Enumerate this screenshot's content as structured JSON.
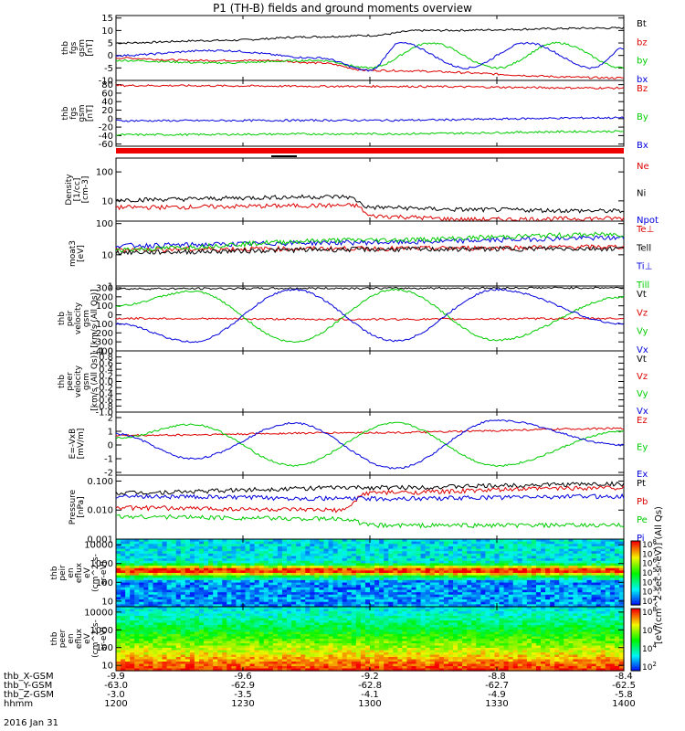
{
  "title": "P1 (TH-B) fields and ground moments overview",
  "xticks": [
    "1200",
    "1230",
    "1300",
    "1330",
    "1400"
  ],
  "footer_rows": [
    {
      "label": "thb_X-GSM",
      "values": [
        "-9.9",
        "-9.6",
        "-9.2",
        "-8.8",
        "-8.4"
      ]
    },
    {
      "label": "thb_Y-GSM",
      "values": [
        "-63.0",
        "-62.9",
        "-62.8",
        "-62.7",
        "-62.5"
      ]
    },
    {
      "label": "thb_Z-GSM",
      "values": [
        "-3.0",
        "-3.5",
        "-4.1",
        "-4.9",
        "-5.8"
      ]
    },
    {
      "label": "hhmm",
      "values": [
        "1200",
        "1230",
        "1300",
        "1330",
        "1400"
      ]
    }
  ],
  "date_label": "2016 Jan 31",
  "colorbar_label": "[eV/(cm^2-sec-sr-eV)] (All Qs)",
  "colors": {
    "black": "#000000",
    "red": "#dd0000",
    "green": "#00cc00",
    "blue": "#0000dd"
  },
  "chart_data": [
    {
      "type": "line",
      "ylabel": [
        "thb",
        "fgs",
        "gsm",
        "[nT]"
      ],
      "ylim": [
        -10,
        16
      ],
      "log": false,
      "yticks": [
        {
          "v": 15,
          "t": "15"
        },
        {
          "v": 10,
          "t": "10"
        },
        {
          "v": 5,
          "t": "5"
        },
        {
          "v": 0,
          "t": "0"
        },
        {
          "v": -5,
          "t": "-5"
        },
        {
          "v": -10,
          "t": "-10"
        }
      ],
      "series": [
        {
          "name": "Bt",
          "color": "black",
          "points": [
            [
              0,
              5
            ],
            [
              0.2,
              6
            ],
            [
              0.4,
              7.5
            ],
            [
              0.5,
              8
            ],
            [
              0.6,
              10
            ],
            [
              1,
              11
            ]
          ]
        },
        {
          "name": "bz",
          "color": "red",
          "points": [
            [
              0,
              -1
            ],
            [
              0.15,
              -2
            ],
            [
              0.3,
              -2
            ],
            [
              0.4,
              -3
            ],
            [
              0.5,
              -6
            ],
            [
              1,
              -9
            ]
          ]
        },
        {
          "name": "by",
          "color": "green",
          "points": [
            [
              0,
              -2
            ],
            [
              0.2,
              -3
            ],
            [
              0.4,
              -2
            ],
            [
              0.5,
              -5
            ],
            [
              0.62,
              5
            ],
            [
              0.75,
              -5
            ],
            [
              0.87,
              5
            ],
            [
              1,
              -5
            ]
          ]
        },
        {
          "name": "bx",
          "color": "blue",
          "points": [
            [
              0,
              0
            ],
            [
              0.2,
              2
            ],
            [
              0.4,
              -1
            ],
            [
              0.5,
              -6
            ],
            [
              0.56,
              5
            ],
            [
              0.69,
              -5
            ],
            [
              0.81,
              5
            ],
            [
              0.94,
              -5
            ],
            [
              1,
              3
            ]
          ]
        }
      ]
    },
    {
      "type": "line",
      "ylabel": [
        "thb",
        "fgs",
        "gsm",
        "[nT]"
      ],
      "ylim": [
        -65,
        90
      ],
      "log": false,
      "yticks": [
        {
          "v": 80,
          "t": "80"
        },
        {
          "v": 60,
          "t": "60"
        },
        {
          "v": 40,
          "t": "40"
        },
        {
          "v": 20,
          "t": "20"
        },
        {
          "v": 0,
          "t": "0"
        },
        {
          "v": -20,
          "t": "-20"
        },
        {
          "v": -40,
          "t": "-40"
        },
        {
          "v": -60,
          "t": "-60"
        }
      ],
      "series": [
        {
          "name": "Bz",
          "color": "red",
          "points": [
            [
              0,
              78
            ],
            [
              0.5,
              76
            ],
            [
              1,
              72
            ]
          ]
        },
        {
          "name": "By",
          "color": "green",
          "points": [
            [
              0,
              -38
            ],
            [
              0.5,
              -36
            ],
            [
              1,
              -30
            ]
          ]
        },
        {
          "name": "Bx",
          "color": "blue",
          "points": [
            [
              0,
              -5
            ],
            [
              0.5,
              -4
            ],
            [
              1,
              2
            ]
          ]
        }
      ]
    },
    {
      "type": "line",
      "ylabel": [
        "Density",
        "[1/cc]",
        "[cm-3]"
      ],
      "ylim": [
        2,
        300
      ],
      "log": true,
      "yticks": [
        {
          "v": 100,
          "t": "100"
        },
        {
          "v": 10,
          "t": "10"
        }
      ],
      "series": [
        {
          "name": "Ne",
          "color": "red",
          "points": [
            [
              0,
              6
            ],
            [
              0.47,
              7
            ],
            [
              0.5,
              3
            ],
            [
              0.7,
              2.3
            ],
            [
              1,
              2.5
            ]
          ]
        },
        {
          "name": "Ni",
          "color": "black",
          "points": [
            [
              0,
              11
            ],
            [
              0.45,
              14
            ],
            [
              0.5,
              6
            ],
            [
              0.7,
              5
            ],
            [
              1,
              4.5
            ]
          ]
        },
        {
          "name": "Npot",
          "color": "blue",
          "points": []
        }
      ]
    },
    {
      "type": "line",
      "ylabel": [
        "moat3",
        "[eV]"
      ],
      "ylim": [
        1,
        120
      ],
      "log": true,
      "yticks": [
        {
          "v": 100,
          "t": "100"
        },
        {
          "v": 10,
          "t": "10"
        },
        {
          "v": 1,
          "t": "1"
        }
      ],
      "series": [
        {
          "name": "Te⊥",
          "color": "red",
          "points": [
            [
              0,
              15
            ],
            [
              0.5,
              16
            ],
            [
              1,
              18
            ]
          ]
        },
        {
          "name": "Tell",
          "color": "black",
          "points": [
            [
              0,
              12
            ],
            [
              0.5,
              15
            ],
            [
              1,
              16
            ]
          ]
        },
        {
          "name": "Ti⊥",
          "color": "blue",
          "points": [
            [
              0,
              20
            ],
            [
              0.5,
              25
            ],
            [
              1,
              35
            ]
          ]
        },
        {
          "name": "Till",
          "color": "green",
          "points": [
            [
              0,
              15
            ],
            [
              0.5,
              30
            ],
            [
              1,
              45
            ]
          ]
        }
      ]
    },
    {
      "type": "line",
      "ylabel": [
        "thb",
        "peir",
        "velocity",
        "gsm",
        "[km/s (All Qs)]"
      ],
      "ylim": [
        -400,
        320
      ],
      "log": false,
      "yticks": [
        {
          "v": 300,
          "t": "300"
        },
        {
          "v": 200,
          "t": "200"
        },
        {
          "v": 100,
          "t": "100"
        },
        {
          "v": 0,
          "t": "0"
        },
        {
          "v": -100,
          "t": "-100"
        },
        {
          "v": -200,
          "t": "-200"
        },
        {
          "v": -300,
          "t": "-300"
        },
        {
          "v": -400,
          "t": "-400"
        }
      ],
      "series": [
        {
          "name": "Vt",
          "color": "black",
          "points": [
            [
              0,
              290
            ],
            [
              0.5,
              295
            ],
            [
              1,
              300
            ]
          ]
        },
        {
          "name": "Vz",
          "color": "red",
          "points": [
            [
              0,
              -40
            ],
            [
              0.5,
              -50
            ],
            [
              1,
              -40
            ]
          ]
        },
        {
          "name": "Vy",
          "color": "green",
          "points": [
            [
              0,
              100
            ],
            [
              0.15,
              260
            ],
            [
              0.35,
              -300
            ],
            [
              0.55,
              280
            ],
            [
              0.75,
              -280
            ],
            [
              1,
              200
            ]
          ]
        },
        {
          "name": "Vx",
          "color": "blue",
          "points": [
            [
              0,
              -100
            ],
            [
              0.15,
              -300
            ],
            [
              0.35,
              280
            ],
            [
              0.55,
              -290
            ],
            [
              0.75,
              280
            ],
            [
              1,
              -100
            ]
          ]
        }
      ]
    },
    {
      "type": "line",
      "ylabel": [
        "thb",
        "peer",
        "velocity",
        "gsm",
        "[km/s (All Qs)]"
      ],
      "ylim": [
        -1,
        1
      ],
      "log": false,
      "yticks": [
        {
          "v": 1,
          "t": "1.0"
        },
        {
          "v": 0.8,
          "t": "0.8"
        },
        {
          "v": 0.6,
          "t": "0.6"
        },
        {
          "v": 0.4,
          "t": "0.4"
        },
        {
          "v": 0.2,
          "t": "0.2"
        },
        {
          "v": 0,
          "t": "0.0"
        },
        {
          "v": -0.2,
          "t": "-0.2"
        },
        {
          "v": -0.4,
          "t": "-0.4"
        },
        {
          "v": -0.6,
          "t": "-0.6"
        },
        {
          "v": -0.8,
          "t": "-0.8"
        },
        {
          "v": -1,
          "t": "-1.0"
        }
      ],
      "series": [
        {
          "name": "Vt",
          "color": "black",
          "points": []
        },
        {
          "name": "Vz",
          "color": "red",
          "points": []
        },
        {
          "name": "Vy",
          "color": "green",
          "points": []
        },
        {
          "name": "Vx",
          "color": "blue",
          "points": []
        }
      ]
    },
    {
      "type": "line",
      "ylabel": [
        "E=-VxB",
        "[mV/m]"
      ],
      "ylim": [
        -2.2,
        2.4
      ],
      "log": false,
      "yticks": [
        {
          "v": 2,
          "t": "2"
        },
        {
          "v": 1,
          "t": "1"
        },
        {
          "v": 0,
          "t": "0"
        },
        {
          "v": -1,
          "t": "-1"
        },
        {
          "v": -2,
          "t": "-2"
        }
      ],
      "series": [
        {
          "name": "Ez",
          "color": "red",
          "points": [
            [
              0,
              0.7
            ],
            [
              0.5,
              0.9
            ],
            [
              1,
              1.2
            ]
          ]
        },
        {
          "name": "Ey",
          "color": "green",
          "points": [
            [
              0,
              0.5
            ],
            [
              0.15,
              1.5
            ],
            [
              0.35,
              -1.5
            ],
            [
              0.55,
              1.6
            ],
            [
              0.75,
              -1.5
            ],
            [
              1,
              1
            ]
          ]
        },
        {
          "name": "Ex",
          "color": "blue",
          "points": [
            [
              0,
              0.8
            ],
            [
              0.15,
              -1
            ],
            [
              0.35,
              1.6
            ],
            [
              0.55,
              -1.7
            ],
            [
              0.75,
              1.8
            ],
            [
              1,
              0
            ]
          ]
        }
      ]
    },
    {
      "type": "line",
      "ylabel": [
        "Pressure",
        "[nPa]"
      ],
      "ylim": [
        0.001,
        0.16
      ],
      "log": true,
      "yticks": [
        {
          "v": 0.1,
          "t": "0.100"
        },
        {
          "v": 0.01,
          "t": "0.010"
        },
        {
          "v": 0.001,
          "t": "0.001"
        }
      ],
      "series": [
        {
          "name": "Pt",
          "color": "black",
          "points": [
            [
              0,
              0.04
            ],
            [
              0.5,
              0.06
            ],
            [
              1,
              0.08
            ]
          ]
        },
        {
          "name": "Pb",
          "color": "red",
          "points": [
            [
              0,
              0.012
            ],
            [
              0.45,
              0.01
            ],
            [
              0.5,
              0.04
            ],
            [
              1,
              0.06
            ]
          ]
        },
        {
          "name": "Pe",
          "color": "green",
          "points": [
            [
              0,
              0.006
            ],
            [
              0.45,
              0.005
            ],
            [
              0.5,
              0.003
            ],
            [
              1,
              0.003
            ]
          ]
        },
        {
          "name": "Pi",
          "color": "blue",
          "points": [
            [
              0,
              0.03
            ],
            [
              0.5,
              0.025
            ],
            [
              1,
              0.03
            ]
          ]
        }
      ]
    },
    {
      "type": "heatmap",
      "ylabel": [
        "thb",
        "peir",
        "en",
        "eflux",
        "eV",
        "(cm^2-s-",
        "sr-eV)"
      ],
      "ylim": [
        5,
        20000
      ],
      "log": true,
      "yticks": [
        {
          "v": 10000,
          "t": "10000"
        },
        {
          "v": 1000,
          "t": "1000"
        },
        {
          "v": 100,
          "t": "100"
        },
        {
          "v": 10,
          "t": "10"
        }
      ],
      "colorbar_ticks": [
        "10^8",
        "10^7",
        "10^6",
        "10^5",
        "10^4",
        "10^3",
        "10^2"
      ]
    },
    {
      "type": "heatmap",
      "ylabel": [
        "thb",
        "peer",
        "en",
        "eflux",
        "eV",
        "(cm^2-s-",
        "sr-eV)"
      ],
      "ylim": [
        5,
        20000
      ],
      "log": true,
      "yticks": [
        {
          "v": 10000,
          "t": "10000"
        },
        {
          "v": 1000,
          "t": "1000"
        },
        {
          "v": 100,
          "t": "100"
        },
        {
          "v": 10,
          "t": "10"
        }
      ],
      "colorbar_ticks": [
        "10^8",
        "10^6",
        "10^4",
        "10^2"
      ]
    }
  ]
}
